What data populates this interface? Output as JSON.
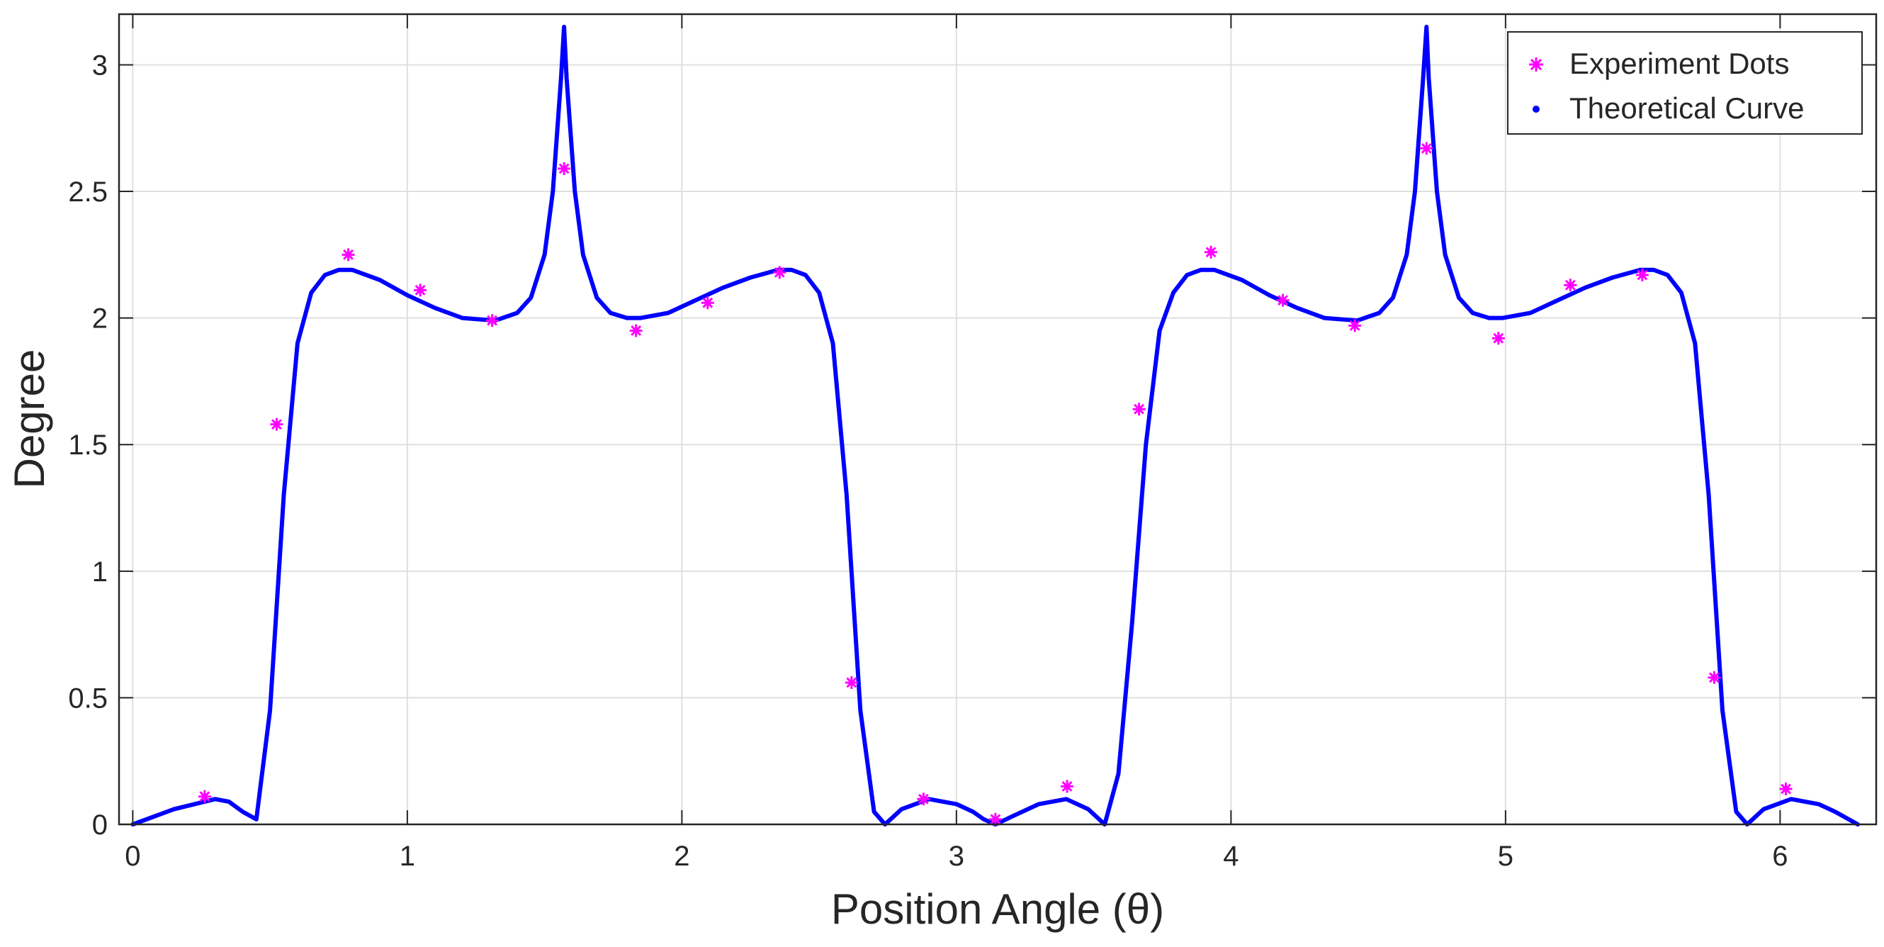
{
  "chart_data": {
    "type": "scatter",
    "title": "",
    "xlabel": "Position Angle (θ)",
    "ylabel": "Degree",
    "xlim": [
      -0.05,
      6.35
    ],
    "ylim": [
      0,
      3.2
    ],
    "xticks": [
      0,
      1,
      2,
      3,
      4,
      5,
      6
    ],
    "yticks": [
      0,
      0.5,
      1,
      1.5,
      2,
      2.5,
      3
    ],
    "xtick_labels": [
      "0",
      "1",
      "2",
      "3",
      "4",
      "5",
      "6"
    ],
    "ytick_labels": [
      "0",
      "0.5",
      "1",
      "1.5",
      "2",
      "2.5",
      "3"
    ],
    "grid": true,
    "legend_position": "top-right",
    "series": [
      {
        "name": "Experiment Dots",
        "style": "markers",
        "marker": "asterisk",
        "color": "#ff00ff",
        "x": [
          0.262,
          0.524,
          0.785,
          1.047,
          1.309,
          1.571,
          1.833,
          2.094,
          2.356,
          2.618,
          2.88,
          3.142,
          3.403,
          3.665,
          3.927,
          4.189,
          4.451,
          4.712,
          4.974,
          5.236,
          5.498,
          5.76,
          6.021
        ],
        "y": [
          0.11,
          1.58,
          2.25,
          2.11,
          1.99,
          2.59,
          1.95,
          2.06,
          2.18,
          0.56,
          0.1,
          0.02,
          0.15,
          1.64,
          2.26,
          2.07,
          1.97,
          2.67,
          1.92,
          2.13,
          2.17,
          0.58,
          0.14
        ]
      },
      {
        "name": "Theoretical Curve",
        "style": "line",
        "color": "#0000ff",
        "x": [
          0,
          0.15,
          0.3,
          0.35,
          0.4,
          0.45,
          0.5,
          0.55,
          0.6,
          0.65,
          0.7,
          0.75,
          0.8,
          0.9,
          1.0,
          1.1,
          1.2,
          1.32,
          1.4,
          1.45,
          1.5,
          1.53,
          1.56,
          1.571,
          1.58,
          1.61,
          1.64,
          1.69,
          1.74,
          1.8,
          1.85,
          1.95,
          2.05,
          2.15,
          2.25,
          2.35,
          2.4,
          2.45,
          2.5,
          2.55,
          2.6,
          2.65,
          2.7,
          2.74,
          2.8,
          2.9,
          3.0,
          3.06,
          3.1,
          3.142,
          3.2,
          3.3,
          3.4,
          3.48,
          3.54,
          3.59,
          3.64,
          3.69,
          3.74,
          3.79,
          3.84,
          3.89,
          3.94,
          4.04,
          4.14,
          4.24,
          4.34,
          4.46,
          4.54,
          4.59,
          4.64,
          4.67,
          4.7,
          4.712,
          4.72,
          4.75,
          4.78,
          4.83,
          4.88,
          4.94,
          4.99,
          5.09,
          5.19,
          5.29,
          5.39,
          5.49,
          5.54,
          5.59,
          5.64,
          5.69,
          5.74,
          5.79,
          5.84,
          5.88,
          5.94,
          6.04,
          6.14,
          6.2,
          6.283
        ],
        "y": [
          0,
          0.06,
          0.1,
          0.09,
          0.05,
          0.02,
          0.45,
          1.3,
          1.9,
          2.1,
          2.17,
          2.19,
          2.19,
          2.15,
          2.09,
          2.04,
          2.0,
          1.99,
          2.02,
          2.08,
          2.25,
          2.5,
          2.95,
          3.15,
          2.95,
          2.5,
          2.25,
          2.08,
          2.02,
          2.0,
          2.0,
          2.02,
          2.07,
          2.12,
          2.16,
          2.19,
          2.19,
          2.17,
          2.1,
          1.9,
          1.3,
          0.45,
          0.05,
          0.0,
          0.06,
          0.1,
          0.08,
          0.05,
          0.02,
          0.0,
          0.03,
          0.08,
          0.1,
          0.06,
          0.0,
          0.2,
          0.8,
          1.5,
          1.95,
          2.1,
          2.17,
          2.19,
          2.19,
          2.15,
          2.09,
          2.04,
          2.0,
          1.99,
          2.02,
          2.08,
          2.25,
          2.5,
          2.95,
          3.15,
          2.95,
          2.5,
          2.25,
          2.08,
          2.02,
          2.0,
          2.0,
          2.02,
          2.07,
          2.12,
          2.16,
          2.19,
          2.19,
          2.17,
          2.1,
          1.9,
          1.3,
          0.45,
          0.05,
          0.0,
          0.06,
          0.1,
          0.08,
          0.05,
          0.0
        ]
      }
    ]
  }
}
